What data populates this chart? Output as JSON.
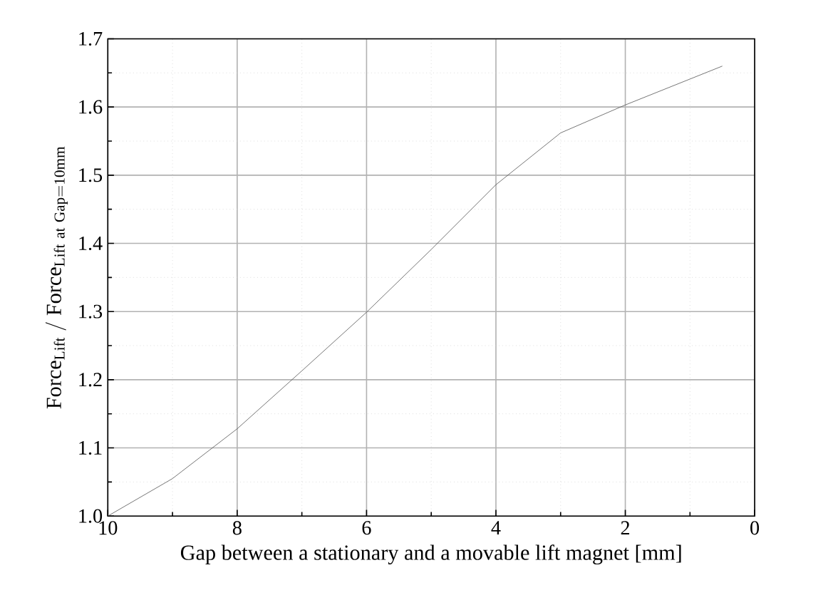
{
  "chart_data": {
    "type": "line",
    "xlabel": "Gap between a stationary and a movable lift magnet [mm]",
    "ylabel": "\\mathrm{Force_{Lift}\\ /\\ Force_{Lift\\ at\\ Gap=10mm}}",
    "x": [
      10,
      9,
      8,
      7,
      6,
      5,
      4,
      3,
      2,
      0.5
    ],
    "series": [
      {
        "color": "#555555",
        "values": [
          1.0,
          1.055,
          1.128,
          1.213,
          1.299,
          1.391,
          1.486,
          1.562,
          1.603,
          1.66
        ]
      }
    ],
    "xlim": [
      10,
      0
    ],
    "xticks": [
      10,
      8,
      6,
      4,
      2,
      0
    ],
    "ylim": [
      1.0,
      1.7
    ],
    "yticks": [
      {
        "value": 1.0,
        "label": "1.0"
      },
      1.1,
      1.2,
      1.3,
      1.4,
      1.5,
      1.6,
      1.7
    ],
    "grid": true,
    "marker": "none",
    "line_style": "solid"
  }
}
